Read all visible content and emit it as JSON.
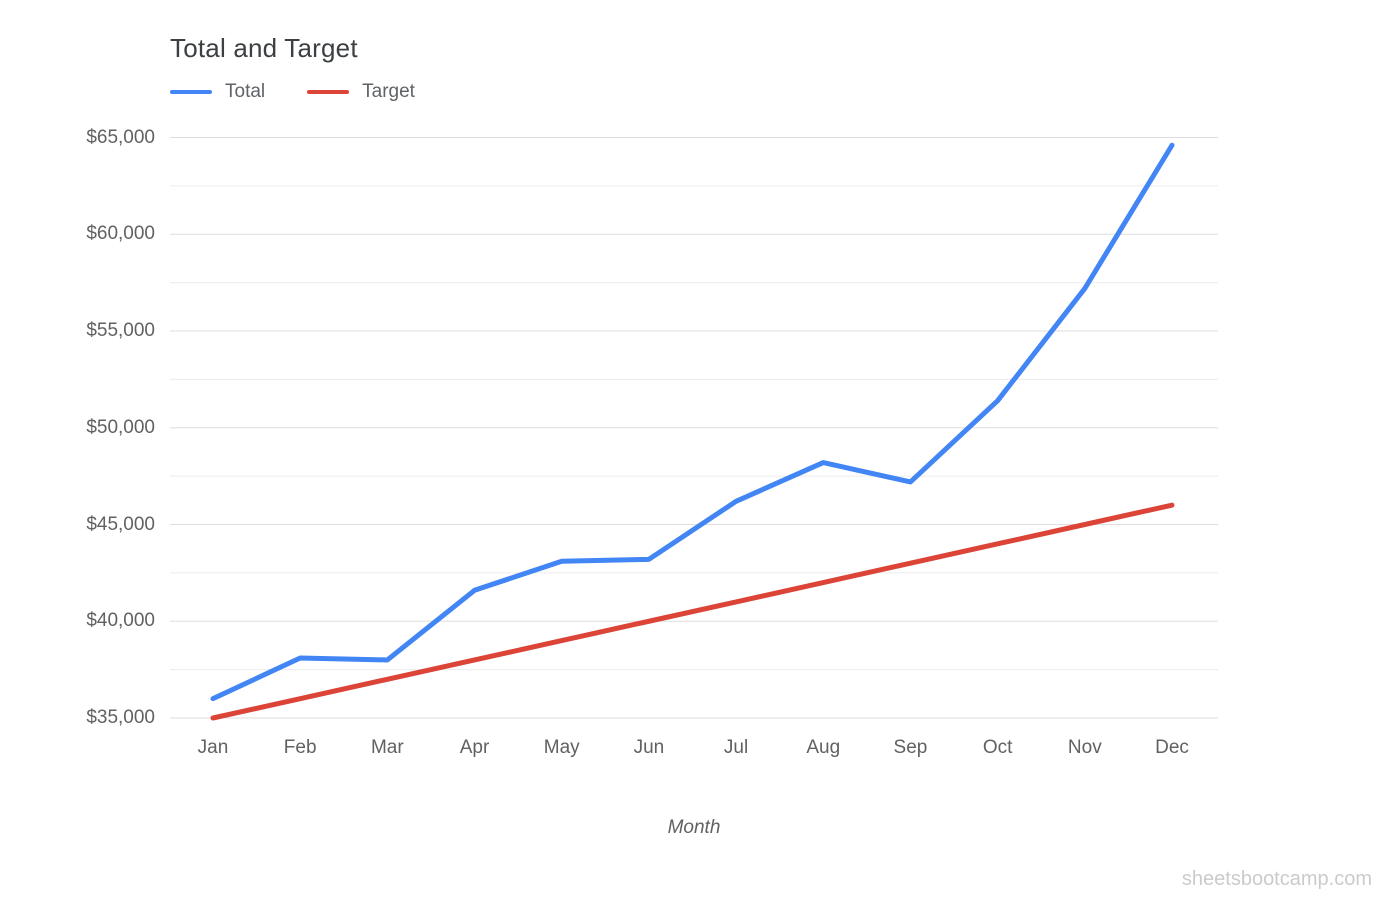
{
  "page": {
    "watermark": "sheetsbootcamp.com",
    "background_color": "#ffffff"
  },
  "chart_data": {
    "type": "line",
    "title": "Total and Target",
    "xlabel": "Month",
    "ylabel": "",
    "categories": [
      "Jan",
      "Feb",
      "Mar",
      "Apr",
      "May",
      "Jun",
      "Jul",
      "Aug",
      "Sep",
      "Oct",
      "Nov",
      "Dec"
    ],
    "series": [
      {
        "name": "Total",
        "color": "#4285f4",
        "values": [
          36000,
          38100,
          38000,
          41600,
          43100,
          43200,
          46200,
          48200,
          47200,
          51400,
          57200,
          64600
        ]
      },
      {
        "name": "Target",
        "color": "#db4437",
        "values": [
          35000,
          36000,
          37000,
          38000,
          39000,
          40000,
          41000,
          42000,
          43000,
          44000,
          45000,
          46000
        ]
      }
    ],
    "ylim": [
      35000,
      65000
    ],
    "yticks": [
      35000,
      40000,
      45000,
      50000,
      55000,
      60000,
      65000
    ],
    "ytick_labels": [
      "$35,000",
      "$40,000",
      "$45,000",
      "$50,000",
      "$55,000",
      "$60,000",
      "$65,000"
    ],
    "minor_grid_interval": 2500,
    "grid": "horizontal",
    "legend_position": "top-left",
    "colors": {
      "title_text": "#3c4043",
      "axis_text": "#616161",
      "legend_text": "#5f6368",
      "major_grid": "#dedede",
      "minor_grid": "#ececec",
      "watermark_text": "#c9cbcd"
    }
  }
}
